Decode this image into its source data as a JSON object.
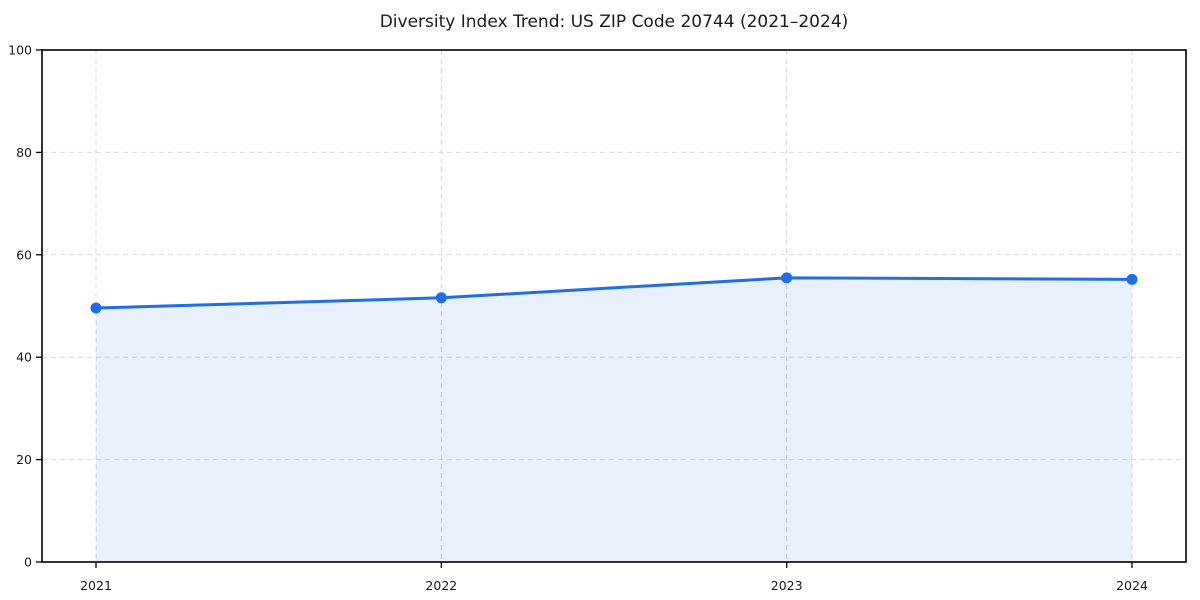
{
  "chart_data": {
    "type": "line",
    "title": "Diversity Index Trend: US ZIP Code 20744 (2021–2024)",
    "categories": [
      "2021",
      "2022",
      "2023",
      "2024"
    ],
    "series": [
      {
        "name": "Diversity Index",
        "values": [
          49.6,
          51.6,
          55.5,
          55.2
        ]
      }
    ],
    "xlabel": "",
    "ylabel": "",
    "ylim": [
      0,
      100
    ],
    "y_ticks": [
      0,
      20,
      40,
      60,
      80,
      100
    ],
    "grid": true,
    "grid_style": "dashed",
    "legend_position": "none",
    "line_color": "#1e6ee6",
    "marker_color": "#1e6ee6",
    "fill_color": "rgba(30, 110, 230, 0.10)",
    "gridline_color": "#d9d9d9",
    "frame_color": "#000000",
    "marker": "circle"
  }
}
